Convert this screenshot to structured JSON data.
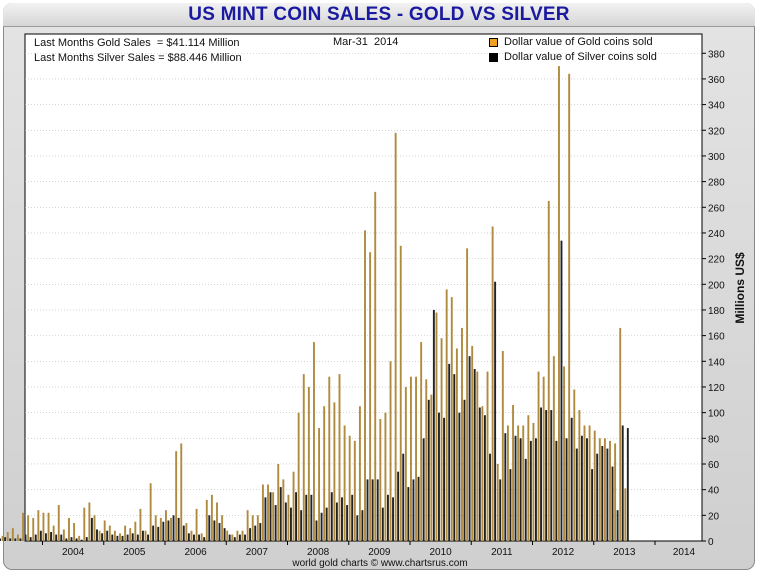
{
  "header": {
    "title": "US MINT COIN SALES - GOLD VS SILVER"
  },
  "info": {
    "gold_line": "Last Months Gold Sales  = $41.114 Million",
    "silver_line": "Last Months Silver Sales = $88.446 Million",
    "date": "Mar-31  2014"
  },
  "legend": {
    "gold": {
      "label": "Dollar value of Gold coins sold",
      "color": "#f0a020"
    },
    "silver": {
      "label": "Dollar value of Silver coins sold",
      "color": "#000000"
    }
  },
  "footer": {
    "credit": "world gold charts © www.chartsrus.com"
  },
  "colors": {
    "gold_bar": "#b08a3e",
    "silver_bar": "#222222",
    "grid": "#bbbbbb"
  },
  "chart_data": {
    "type": "bar",
    "ylabel": "Millions US$",
    "ylim": [
      0,
      395
    ],
    "yticks": [
      0,
      20,
      40,
      60,
      80,
      100,
      120,
      140,
      160,
      180,
      200,
      220,
      240,
      260,
      280,
      300,
      320,
      340,
      360,
      380
    ],
    "x_start": "2003-04",
    "x_end": "2014-03",
    "year_labels": [
      "2004",
      "2005",
      "2006",
      "2007",
      "2008",
      "2009",
      "2010",
      "2011",
      "2012",
      "2013",
      "2014"
    ],
    "grid": "horizontal",
    "series": [
      {
        "name": "Dollar value of Gold coins sold",
        "values": [
          12,
          4,
          7,
          10,
          5,
          22,
          20,
          18,
          24,
          22,
          22,
          12,
          28,
          9,
          18,
          14,
          4,
          26,
          30,
          20,
          8,
          16,
          12,
          8,
          6,
          12,
          10,
          15,
          25,
          8,
          45,
          20,
          18,
          24,
          18,
          70,
          76,
          14,
          8,
          25,
          6,
          32,
          36,
          30,
          20,
          8,
          5,
          8,
          8,
          24,
          20,
          20,
          44,
          44,
          38,
          60,
          48,
          36,
          54,
          100,
          130,
          120,
          155,
          88,
          105,
          128,
          108,
          130,
          90,
          82,
          78,
          105,
          242,
          225,
          272,
          95,
          100,
          140,
          318,
          230,
          120,
          128,
          128,
          155,
          126,
          114,
          178,
          158,
          196,
          190,
          150,
          166,
          228,
          152,
          132,
          105,
          132,
          245,
          60,
          148,
          90,
          106,
          90,
          90,
          98,
          92,
          132,
          128,
          265,
          144,
          370,
          136,
          364,
          118,
          102,
          90,
          90,
          86,
          80,
          80,
          78,
          76,
          166,
          41
        ]
      },
      {
        "name": "Dollar value of Silver coins sold",
        "values": [
          2,
          3,
          2,
          2,
          2,
          5,
          3,
          5,
          8,
          6,
          7,
          5,
          5,
          2,
          3,
          2,
          1,
          3,
          18,
          9,
          6,
          8,
          5,
          4,
          4,
          5,
          6,
          5,
          8,
          5,
          12,
          11,
          15,
          16,
          20,
          18,
          12,
          6,
          5,
          5,
          3,
          20,
          16,
          14,
          10,
          5,
          3,
          5,
          5,
          10,
          12,
          14,
          34,
          38,
          28,
          42,
          30,
          26,
          38,
          24,
          36,
          36,
          16,
          22,
          26,
          38,
          30,
          34,
          28,
          36,
          20,
          24,
          48,
          48,
          48,
          26,
          36,
          34,
          54,
          68,
          42,
          48,
          50,
          80,
          110,
          180,
          100,
          96,
          138,
          130,
          100,
          110,
          144,
          134,
          104,
          98,
          68,
          202,
          48,
          84,
          56,
          82,
          80,
          64,
          78,
          80,
          104,
          102,
          102,
          78,
          234,
          80,
          96,
          72,
          82,
          80,
          56,
          68,
          74,
          72,
          58,
          24,
          90,
          88
        ]
      }
    ]
  }
}
